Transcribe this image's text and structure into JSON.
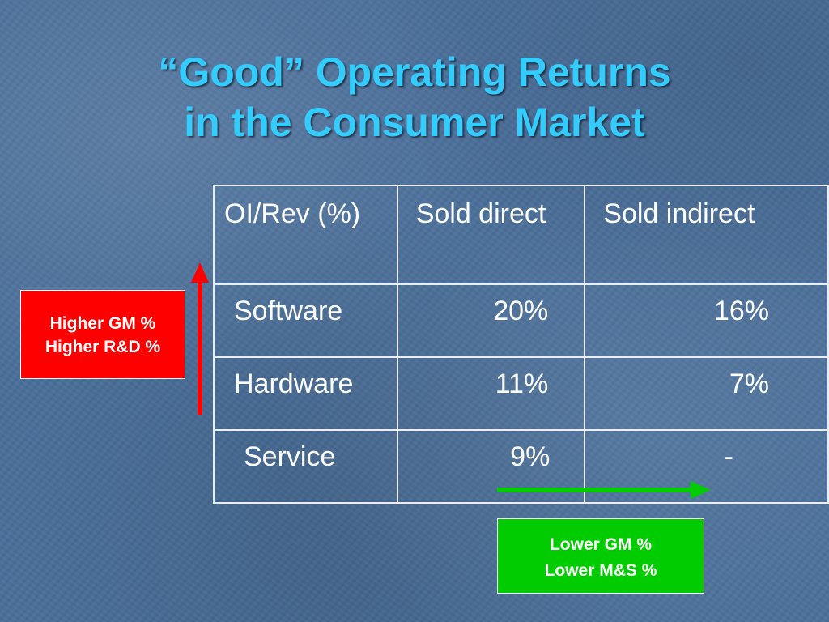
{
  "title": {
    "line1": "“Good” Operating Returns",
    "line2": "in the Consumer Market"
  },
  "table": {
    "headers": [
      "OI/Rev (%)",
      "Sold direct",
      "Sold indirect"
    ],
    "rows": [
      {
        "category": "Software",
        "sold_direct": "20%",
        "sold_indirect": "16%"
      },
      {
        "category": "Hardware",
        "sold_direct": "11%",
        "sold_indirect": "7%"
      },
      {
        "category": "Service",
        "sold_direct": "9%",
        "sold_indirect": "-"
      }
    ]
  },
  "callouts": {
    "vertical": {
      "lines": [
        "Higher GM %",
        "Higher R&D %"
      ],
      "color": "#ff0000",
      "arrow_direction": "up"
    },
    "horizontal": {
      "lines": [
        "Lower GM %",
        "Lower M&S %"
      ],
      "color": "#00cc00",
      "arrow_direction": "right"
    }
  },
  "colors": {
    "background": "#4a6f9a",
    "title": "#33ccff",
    "table_text": "#ffffff",
    "table_border": "#e8eef5"
  }
}
